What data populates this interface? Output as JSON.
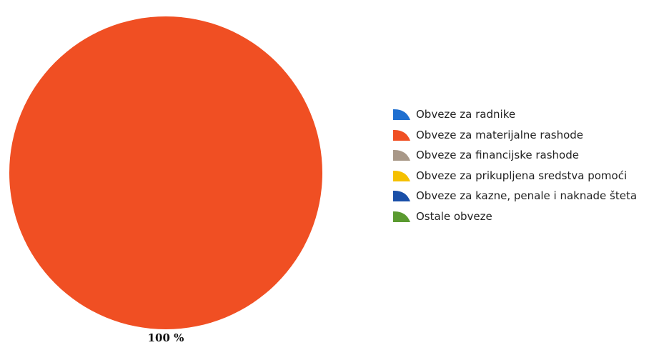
{
  "chart_data": {
    "type": "pie",
    "categories": [
      "Obveze za radnike",
      "Obveze za materijalne rashode",
      "Obveze za financijske rashode",
      "Obveze za prikupljena sredstva pomoći",
      "Obveze za kazne, penale i naknade šteta",
      "Ostale obveze"
    ],
    "values": [
      0,
      100,
      0,
      0,
      0,
      0
    ],
    "colors": [
      "#1f6fd0",
      "#f04f23",
      "#a89888",
      "#f5c000",
      "#1a4fa8",
      "#5a9a30"
    ],
    "data_labels": [
      "",
      "100 %",
      "",
      "",
      "",
      ""
    ],
    "legend_position": "right"
  }
}
